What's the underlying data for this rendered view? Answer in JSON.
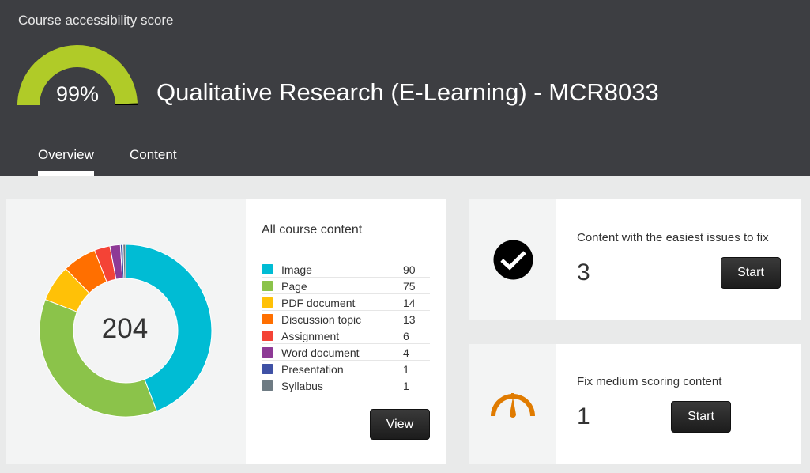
{
  "header": {
    "score_label": "Course accessibility score",
    "score_value": 99,
    "score_text": "99%",
    "gauge_color": "#b0cb28",
    "title": "Qualitative Research (E-Learning) - MCR8033"
  },
  "tabs": [
    {
      "label": "Overview",
      "active": true
    },
    {
      "label": "Content",
      "active": false
    }
  ],
  "content_summary": {
    "total": "204",
    "title": "All course content",
    "view_label": "View",
    "items": [
      {
        "label": "Image",
        "count": "90",
        "color": "#00bcd4"
      },
      {
        "label": "Page",
        "count": "75",
        "color": "#8bc34a"
      },
      {
        "label": "PDF document",
        "count": "14",
        "color": "#ffc107"
      },
      {
        "label": "Discussion topic",
        "count": "13",
        "color": "#ff6f00"
      },
      {
        "label": "Assignment",
        "count": "6",
        "color": "#f44336"
      },
      {
        "label": "Word document",
        "count": "4",
        "color": "#8e3a96"
      },
      {
        "label": "Presentation",
        "count": "1",
        "color": "#3f51a5"
      },
      {
        "label": "Syllabus",
        "count": "1",
        "color": "#6e7b83"
      }
    ]
  },
  "easy_card": {
    "icon": "check-circle-icon",
    "title": "Content with the easiest issues to fix",
    "count": "3",
    "button": "Start"
  },
  "medium_card": {
    "icon": "speedometer-icon",
    "icon_color": "#e07b00",
    "title": "Fix medium scoring content",
    "count": "1",
    "button": "Start"
  }
}
